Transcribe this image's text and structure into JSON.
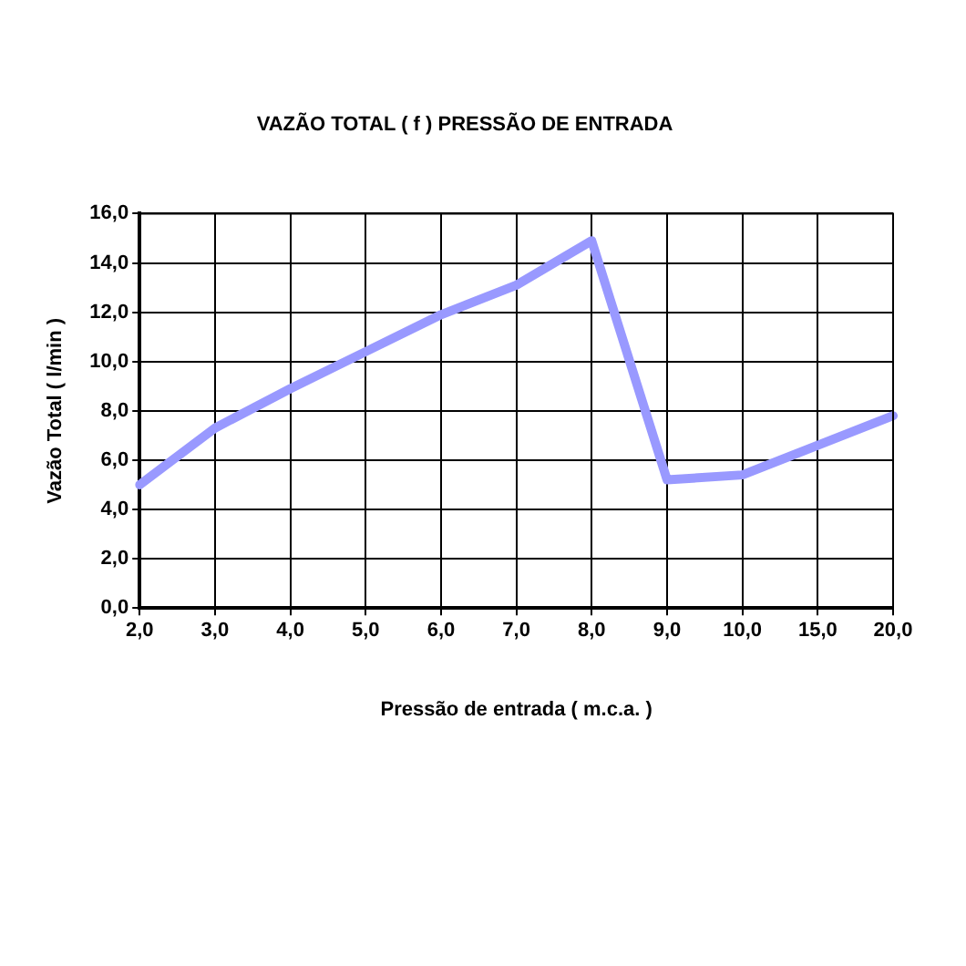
{
  "chart_data": {
    "type": "line",
    "title": "VAZÃO TOTAL ( f ) PRESSÃO DE ENTRADA",
    "xlabel": "Pressão de entrada ( m.c.a. )",
    "ylabel": "Vazão Total ( l/min )",
    "categories": [
      "2,0",
      "3,0",
      "4,0",
      "5,0",
      "6,0",
      "7,0",
      "8,0",
      "9,0",
      "10,0",
      "15,0",
      "20,0"
    ],
    "series": [
      {
        "color": "#9999ff",
        "values": [
          5.0,
          7.3,
          8.9,
          10.4,
          11.9,
          13.1,
          14.9,
          5.2,
          5.4,
          6.6,
          7.8
        ]
      }
    ],
    "ylim": [
      0,
      16
    ],
    "yticks": [
      {
        "value": 0,
        "label": "0,0"
      },
      {
        "value": 2,
        "label": "2,0"
      },
      {
        "value": 4,
        "label": "4,0"
      },
      {
        "value": 6,
        "label": "6,0"
      },
      {
        "value": 8,
        "label": "8,0"
      },
      {
        "value": 10,
        "label": "10,0"
      },
      {
        "value": 12,
        "label": "12,0"
      },
      {
        "value": 14,
        "label": "14,0"
      },
      {
        "value": 16,
        "label": "16,0"
      }
    ],
    "grid": true,
    "legend": false,
    "marker": "none"
  }
}
